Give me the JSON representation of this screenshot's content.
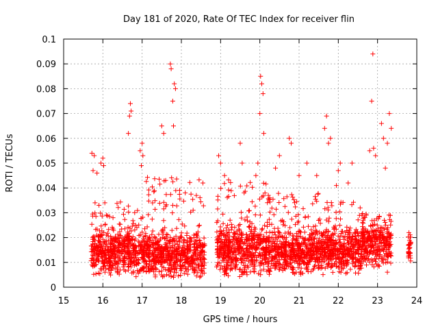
{
  "chart_data": {
    "type": "scatter",
    "title": "Day 181 of 2020, Rate Of TEC Index for receiver flin",
    "xlabel": "GPS time / hours",
    "ylabel": "ROTI / TECUs",
    "xlim": [
      15,
      24
    ],
    "ylim": [
      0,
      0.1
    ],
    "xticks": [
      "15",
      "16",
      "17",
      "18",
      "19",
      "20",
      "21",
      "22",
      "23",
      "24"
    ],
    "yticks": [
      "0",
      "0.01",
      "0.02",
      "0.03",
      "0.04",
      "0.05",
      "0.06",
      "0.07",
      "0.08",
      "0.09",
      "0.1"
    ],
    "grid": true,
    "marker": "+",
    "marker_color": "#ff0000",
    "series": [
      {
        "name": "",
        "x": [
          15.72,
          15.75,
          15.78,
          15.8,
          15.85,
          15.9,
          15.95,
          16.0,
          16.02,
          16.05,
          16.65,
          16.68,
          16.7,
          16.72,
          16.95,
          16.98,
          17.0,
          17.02,
          17.5,
          17.55,
          17.6,
          17.72,
          17.74,
          17.78,
          17.8,
          17.82,
          17.85,
          18.1,
          18.3,
          18.55,
          18.95,
          19.0,
          19.1,
          19.5,
          19.55,
          19.6,
          19.9,
          19.95,
          20.0,
          20.02,
          20.05,
          20.08,
          20.1,
          20.4,
          20.5,
          20.75,
          20.8,
          21.0,
          21.2,
          21.45,
          21.65,
          21.7,
          21.75,
          21.8,
          21.95,
          22.0,
          22.05,
          22.25,
          22.35,
          22.8,
          22.85,
          22.88,
          22.9,
          22.95,
          23.1,
          23.15,
          23.2,
          23.25,
          23.3,
          23.35,
          23.8,
          23.85
        ],
        "y": [
          0.054,
          0.047,
          0.053,
          0.034,
          0.046,
          0.033,
          0.05,
          0.052,
          0.049,
          0.034,
          0.062,
          0.069,
          0.074,
          0.071,
          0.055,
          0.049,
          0.058,
          0.053,
          0.065,
          0.062,
          0.043,
          0.09,
          0.088,
          0.075,
          0.065,
          0.082,
          0.08,
          0.038,
          0.031,
          0.042,
          0.053,
          0.05,
          0.045,
          0.058,
          0.05,
          0.038,
          0.045,
          0.05,
          0.07,
          0.085,
          0.082,
          0.078,
          0.062,
          0.048,
          0.053,
          0.06,
          0.058,
          0.045,
          0.05,
          0.045,
          0.064,
          0.069,
          0.058,
          0.06,
          0.041,
          0.047,
          0.05,
          0.042,
          0.05,
          0.055,
          0.075,
          0.094,
          0.056,
          0.053,
          0.066,
          0.06,
          0.048,
          0.058,
          0.07,
          0.064,
          0.022,
          0.018
        ],
        "bands": [
          {
            "x_start": 15.7,
            "x_end": 16.15,
            "low": 0.005,
            "high": 0.03,
            "mid": 0.014,
            "spread": 0.006
          },
          {
            "x_start": 16.15,
            "x_end": 17.1,
            "low": 0.004,
            "high": 0.035,
            "mid": 0.014,
            "spread": 0.006
          },
          {
            "x_start": 17.1,
            "x_end": 18.6,
            "low": 0.004,
            "high": 0.045,
            "mid": 0.013,
            "spread": 0.006
          },
          {
            "x_start": 18.9,
            "x_end": 20.2,
            "low": 0.004,
            "high": 0.044,
            "mid": 0.015,
            "spread": 0.007
          },
          {
            "x_start": 20.2,
            "x_end": 21.6,
            "low": 0.005,
            "high": 0.038,
            "mid": 0.014,
            "spread": 0.006
          },
          {
            "x_start": 21.6,
            "x_end": 22.6,
            "low": 0.005,
            "high": 0.035,
            "mid": 0.015,
            "spread": 0.006
          },
          {
            "x_start": 22.6,
            "x_end": 23.35,
            "low": 0.006,
            "high": 0.03,
            "mid": 0.017,
            "spread": 0.006
          },
          {
            "x_start": 23.78,
            "x_end": 23.85,
            "low": 0.009,
            "high": 0.022,
            "mid": 0.015,
            "spread": 0.004
          }
        ]
      }
    ]
  }
}
